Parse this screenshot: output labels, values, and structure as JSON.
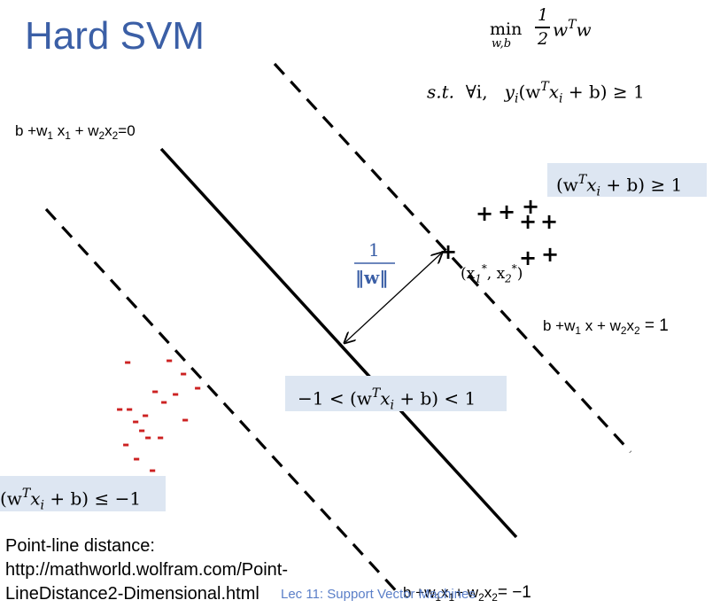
{
  "title": "Hard SVM",
  "objective": {
    "min": "min",
    "min_sub": "w,b",
    "frac_num": "1",
    "frac_den": "2",
    "expr": "w",
    "expr_sup": "T",
    "expr_tail": "w"
  },
  "constraint": {
    "st": "s.t.",
    "forall": "∀i,",
    "lhs": "y",
    "lhs_sub": "i",
    "body": "(w",
    "body_sup": "T",
    "body_x": "x",
    "body_x_sub": "i",
    "rhs": "+ b) ≥ 1"
  },
  "lines": {
    "boundary": {
      "a": "b +w",
      "a_sub": "1",
      "b": " x",
      "b_sub": "1",
      "c": " + w",
      "c_sub": "2",
      "d": "x",
      "d_sub": "2",
      "e": "=0"
    },
    "positive_margin": {
      "a": "b +w",
      "a_sub": "1",
      "b": " x + w",
      "b_sub": "2",
      "c": "x",
      "c_sub": "2",
      "d": " = 1"
    },
    "negative_margin": {
      "a": "b +w",
      "a_sub": "1",
      "b": "x",
      "b_sub": "1",
      "c": "+ w",
      "c_sub": "2",
      "d": "x",
      "d_sub": "2",
      "e": "= −1"
    }
  },
  "regions": {
    "positive": {
      "open": "(w",
      "sup": "T",
      "x": "x",
      "sub": "i",
      "rest": " + b) ≥ 1"
    },
    "margin": {
      "pre": "−1 < (w",
      "sup": "T",
      "x": "x",
      "sub": "i",
      "rest": " + b) < 1"
    },
    "negative": {
      "open": "(w",
      "sup": "T",
      "x": "x",
      "sub": "i",
      "rest": " + b) ≤ −1"
    }
  },
  "distance": {
    "num": "1",
    "den": "‖w‖"
  },
  "support_point": {
    "text": "(x",
    "sub1": "1",
    "sup1": "*",
    "mid": ", x",
    "sub2": "2",
    "sup2": "*",
    "close": ")"
  },
  "points": {
    "plus": "+",
    "minus": "-"
  },
  "note": {
    "line1": "Point-line distance:",
    "line2": "http://mathworld.wolfram.com/Point-",
    "line3": "LineDistance2-Dimensional.html"
  },
  "footer": "Lec 11: Support Vector Machines",
  "colors": {
    "title": "#3b5fa6",
    "region_box": "#dde6f2",
    "distance": "#3b5fa6",
    "negative_points": "#cc2222",
    "footer": "#5b7fc8"
  }
}
